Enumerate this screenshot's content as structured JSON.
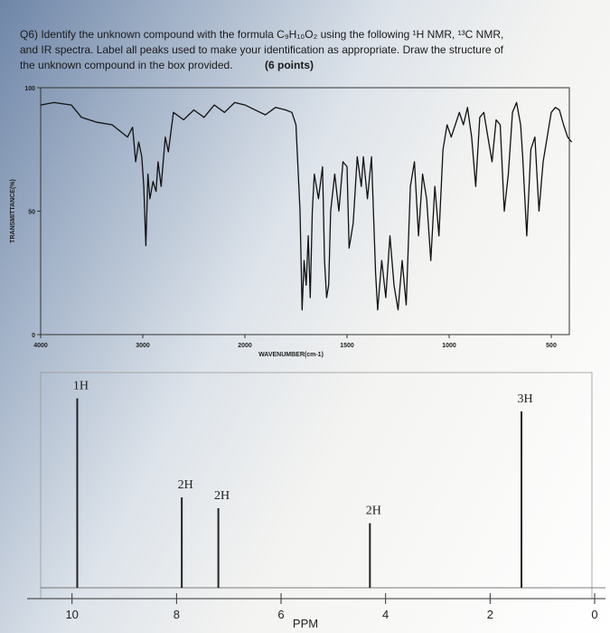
{
  "question": {
    "lines": [
      "Q6) Identify the unknown compound with the formula C₉H₁₀O₂ using the following ¹H NMR, ¹³C NMR,",
      "and IR spectra. Label all peaks used to make your identification as appropriate. Draw the structure of",
      "the unknown compound in the box provided."
    ],
    "points": "(6 points)"
  },
  "chart_data": [
    {
      "type": "line",
      "xlabel": "WAVENUMBER(cm-1)",
      "ylabel": "TRANSMITTANCE(%)",
      "xlim": [
        4000,
        400
      ],
      "xticks": [
        4000,
        3000,
        2000,
        1500,
        1000,
        500
      ],
      "ylim": [
        0,
        100
      ],
      "yticks": [
        0,
        50,
        100
      ],
      "color": "#111111",
      "x": [
        4000,
        3870,
        3700,
        3600,
        3450,
        3300,
        3150,
        3100,
        3070,
        3040,
        3010,
        2990,
        2970,
        2950,
        2930,
        2900,
        2870,
        2850,
        2820,
        2780,
        2750,
        2700,
        2600,
        2500,
        2400,
        2300,
        2200,
        2100,
        2000,
        1950,
        1900,
        1850,
        1800,
        1770,
        1750,
        1730,
        1720,
        1710,
        1700,
        1690,
        1680,
        1670,
        1660,
        1640,
        1620,
        1610,
        1600,
        1590,
        1580,
        1560,
        1540,
        1520,
        1500,
        1490,
        1470,
        1450,
        1430,
        1420,
        1400,
        1380,
        1360,
        1350,
        1330,
        1310,
        1290,
        1270,
        1250,
        1230,
        1210,
        1190,
        1170,
        1150,
        1130,
        1110,
        1090,
        1070,
        1050,
        1030,
        1010,
        990,
        970,
        950,
        930,
        910,
        890,
        870,
        850,
        830,
        810,
        790,
        770,
        750,
        730,
        710,
        690,
        670,
        650,
        640,
        620,
        600,
        580,
        560,
        540,
        520,
        500,
        480,
        460,
        440,
        420,
        400
      ],
      "values": [
        93,
        94,
        93,
        88,
        86,
        85,
        80,
        84,
        70,
        78,
        72,
        60,
        36,
        65,
        55,
        62,
        58,
        70,
        60,
        80,
        74,
        90,
        87,
        91,
        88,
        93,
        90,
        94,
        93,
        91,
        89,
        92,
        91,
        90,
        85,
        50,
        10,
        30,
        20,
        40,
        15,
        50,
        65,
        55,
        68,
        30,
        15,
        20,
        50,
        65,
        50,
        70,
        68,
        35,
        45,
        72,
        60,
        72,
        55,
        72,
        25,
        10,
        30,
        15,
        40,
        20,
        10,
        30,
        12,
        60,
        70,
        40,
        65,
        55,
        30,
        60,
        40,
        75,
        85,
        80,
        85,
        90,
        85,
        92,
        80,
        60,
        88,
        90,
        80,
        70,
        87,
        85,
        50,
        65,
        90,
        94,
        85,
        72,
        40,
        75,
        80,
        50,
        70,
        80,
        90,
        92,
        91,
        85,
        80,
        78
      ]
    },
    {
      "type": "stem",
      "xlabel": "PPM",
      "xlim": [
        10.6,
        0
      ],
      "xticks": [
        10,
        8,
        6,
        4,
        2,
        0
      ],
      "ylim": [
        0,
        100
      ],
      "color": "#222222",
      "x": [
        9.9,
        7.9,
        7.2,
        4.3,
        1.4
      ],
      "values": [
        88,
        42,
        37,
        30,
        82
      ],
      "peak_labels": [
        "1H",
        "2H",
        "2H",
        "2H",
        "3H"
      ]
    }
  ]
}
